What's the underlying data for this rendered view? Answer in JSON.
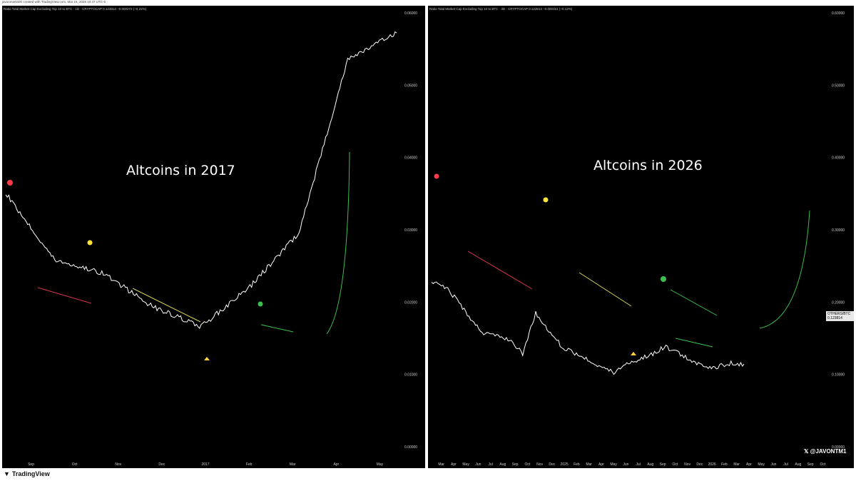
{
  "credit": "javonmarks00 created with TradingView.com, Mar 15, 2026 10:47 UTC-5",
  "footer": {
    "brand": "TradingView",
    "logo_icon": "tradingview-logo-icon"
  },
  "panels": [
    {
      "header": "Ratio Total Market Cap Excluding Top 10 to BTC · 1D · CRYPTOCAP  0.123814  −0.000272 (−0.22%)",
      "annotation": "Altcoins in 2017",
      "y_ticks": [
        "0.06000",
        "0.05000",
        "0.04000",
        "0.03000",
        "0.02000",
        "0.01000",
        "0.00000"
      ],
      "x_ticks": [
        "Sep",
        "Oct",
        "Nov",
        "Dec",
        "2017",
        "Feb",
        "Mar",
        "Apr",
        "May"
      ]
    },
    {
      "header": "Ratio Total Market Cap Excluding Top 10 to BTC · 3D · CRYPTOCAP  0.123814  −0.000151 (−0.12%)",
      "annotation": "Altcoins in 2026",
      "watermark": "@JAVONTM1",
      "price_badge": "OTHERS/BTC 0.123814",
      "y_ticks": [
        "0.60000",
        "0.50000",
        "0.40000",
        "0.30000",
        "0.20000",
        "0.10000",
        "0.00000"
      ],
      "x_ticks": [
        "Mar",
        "Apr",
        "May",
        "Jun",
        "Jul",
        "Aug",
        "Sep",
        "Oct",
        "Nov",
        "Dec",
        "2025",
        "Feb",
        "Mar",
        "Apr",
        "May",
        "Jun",
        "Jul",
        "Aug",
        "Sep",
        "Oct",
        "Nov",
        "Dec",
        "2026",
        "Feb",
        "Mar",
        "Apr",
        "May",
        "Jun",
        "Jul",
        "Aug",
        "Sep",
        "Oct"
      ]
    }
  ],
  "colors": {
    "background": "#000000",
    "line": "#ffffff",
    "top_marker": "#ff3b4a",
    "mid_marker": "#ffe23b",
    "breakout_marker": "#3bbf4e",
    "trend_red": "#d9364a",
    "trend_yellow": "#d8d45a",
    "trend_green": "#3bbf4e",
    "bottom_marker": "#ffd23b"
  },
  "chart_data": [
    {
      "type": "line",
      "title": "Altcoins in 2017",
      "x": [
        "Sep",
        "Oct",
        "Nov",
        "Dec",
        "2017",
        "Feb",
        "Mar",
        "Apr",
        "May"
      ],
      "series": [
        {
          "values": [
            0.038,
            0.028,
            0.026,
            0.021,
            0.018,
            0.024,
            0.032,
            0.058,
            0.062
          ]
        }
      ]
    },
    {
      "type": "line",
      "title": "Altcoins in 2026",
      "x": [
        "Mar",
        "Apr",
        "May",
        "Jun",
        "Jul",
        "Aug",
        "Sep",
        "Oct",
        "Nov",
        "Dec",
        "2025",
        "Feb",
        "Mar",
        "Apr",
        "May",
        "Jun",
        "Jul",
        "Aug",
        "Sep",
        "Oct",
        "Nov",
        "Dec",
        "2026",
        "Feb",
        "Mar"
      ],
      "series": [
        {
          "values": [
            0.245,
            0.24,
            0.22,
            0.19,
            0.17,
            0.165,
            0.16,
            0.14,
            0.2,
            0.175,
            0.15,
            0.14,
            0.13,
            0.12,
            0.11,
            0.125,
            0.13,
            0.14,
            0.15,
            0.14,
            0.13,
            0.12,
            0.12,
            0.125,
            0.124
          ]
        }
      ]
    }
  ]
}
